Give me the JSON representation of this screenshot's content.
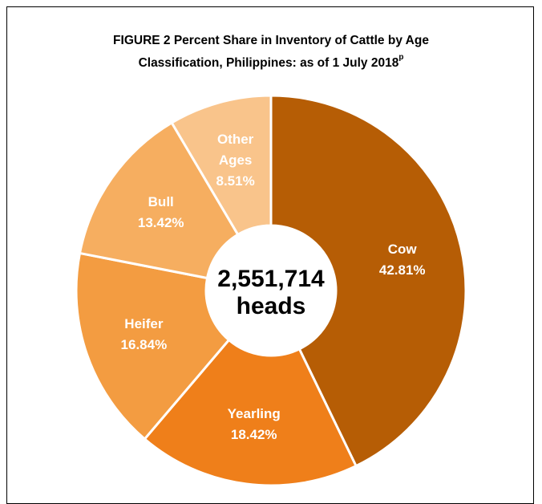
{
  "chart_data": {
    "type": "donut",
    "title": [
      "FIGURE 2  Percent Share in  Inventory of Cattle by Age",
      "Classification, Philippines: as of 1 July 2018"
    ],
    "title_superscript": "p",
    "center_text": [
      "2,551,714",
      "heads"
    ],
    "categories": [
      "Cow",
      "Yearling",
      "Heifer",
      "Bull",
      "Other Ages"
    ],
    "values": [
      42.81,
      18.42,
      16.84,
      13.42,
      8.51
    ],
    "value_labels": [
      "42.81%",
      "18.42%",
      "16.84%",
      "13.42%",
      "8.51%"
    ],
    "colors": [
      "#b65d05",
      "#ef7f1a",
      "#f39c41",
      "#f6ae60",
      "#f9c48b"
    ]
  }
}
